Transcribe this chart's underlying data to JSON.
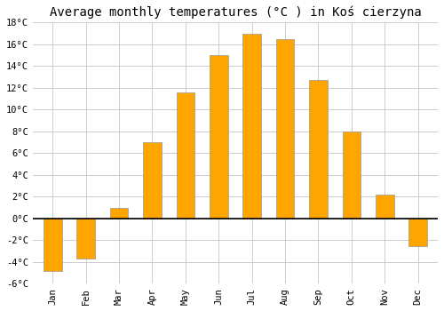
{
  "title": "Average monthly temperatures (°C ) in Koś cierzyna",
  "months": [
    "Jan",
    "Feb",
    "Mar",
    "Apr",
    "May",
    "Jun",
    "Jul",
    "Aug",
    "Sep",
    "Oct",
    "Nov",
    "Dec"
  ],
  "values": [
    -4.8,
    -3.7,
    1.0,
    7.0,
    11.6,
    15.0,
    17.0,
    16.5,
    12.7,
    8.0,
    2.2,
    -2.5
  ],
  "bar_color": "#FFA500",
  "bar_edge_color": "#999999",
  "ylim": [
    -6,
    18
  ],
  "yticks": [
    -6,
    -4,
    -2,
    0,
    2,
    4,
    6,
    8,
    10,
    12,
    14,
    16,
    18
  ],
  "ytick_labels": [
    "-6°C",
    "-4°C",
    "-2°C",
    "0°C",
    "2°C",
    "4°C",
    "6°C",
    "8°C",
    "10°C",
    "12°C",
    "14°C",
    "16°C",
    "18°C"
  ],
  "grid_color": "#cccccc",
  "background_color": "#ffffff",
  "zero_line_color": "#000000",
  "title_fontsize": 10,
  "tick_fontsize": 7.5,
  "font_family": "monospace",
  "bar_width": 0.55
}
